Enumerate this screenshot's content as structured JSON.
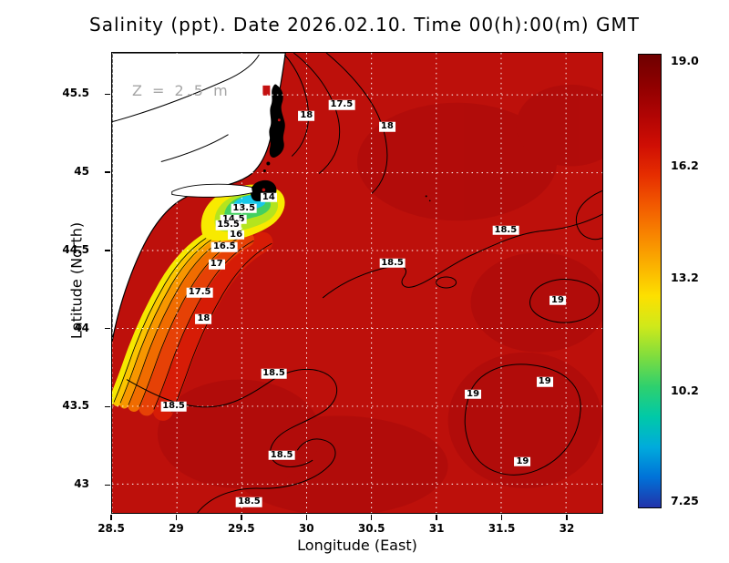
{
  "title": "Salinity (ppt). Date 2026.02.10. Time 00(h):00(m) GMT",
  "annotation": {
    "text": "Z = 2.5 m"
  },
  "axes": {
    "xlabel": "Longitude (East)",
    "ylabel": "Latitude (North)"
  },
  "colorbar": {
    "min": 7.25,
    "max": 19.0,
    "ticks": [
      {
        "value": 19.0,
        "label": "19.0"
      },
      {
        "value": 16.2,
        "label": "16.2"
      },
      {
        "value": 13.2,
        "label": "13.2"
      },
      {
        "value": 10.2,
        "label": "10.2"
      },
      {
        "value": 7.25,
        "label": "7.25"
      }
    ],
    "gradient": [
      "#6f0000",
      "#8e0000",
      "#b00404",
      "#cf0e04",
      "#e62e00",
      "#f25a00",
      "#f88600",
      "#fbb200",
      "#fde000",
      "#cfe91a",
      "#7fdd3e",
      "#2ed06e",
      "#00c9a8",
      "#00abdc",
      "#0072d8",
      "#2233aa"
    ]
  },
  "map_colors": {
    "sea": "#bd100b",
    "land": "#ffffff",
    "plume_bands": [
      "#d61c06",
      "#e64106",
      "#f06c00",
      "#f79600",
      "#fbc400",
      "#f6e800"
    ],
    "pocket_bands": [
      "#f8ea00",
      "#b4e41e",
      "#44d060",
      "#18c8e8"
    ],
    "river_fresh": "#000000",
    "marker_red": "#c41010"
  },
  "chart_data": {
    "type": "heatmap",
    "title": "Salinity (ppt). Date 2026.02.10. Time 00(h):00(m) GMT",
    "variable": "Salinity",
    "units": "ppt",
    "depth_label": "Z = 2.5 m",
    "date": "2026.02.10",
    "time_gmt": "00(h):00(m)",
    "xlabel": "Longitude (East)",
    "ylabel": "Latitude (North)",
    "x_range": [
      28.5,
      32.28
    ],
    "y_range": [
      42.815,
      45.77
    ],
    "value_range": [
      7.25,
      19.0
    ],
    "contour_interval": 0.5,
    "grid": true,
    "legend_position": "right-colorbar",
    "xticks": [
      {
        "value": 28.5,
        "label": "28.5"
      },
      {
        "value": 29,
        "label": "29"
      },
      {
        "value": 29.5,
        "label": "29.5"
      },
      {
        "value": 30,
        "label": "30"
      },
      {
        "value": 30.5,
        "label": "30.5"
      },
      {
        "value": 31,
        "label": "31"
      },
      {
        "value": 31.5,
        "label": "31.5"
      },
      {
        "value": 32,
        "label": "32"
      }
    ],
    "yticks": [
      {
        "value": 43,
        "label": "43"
      },
      {
        "value": 43.5,
        "label": "43.5"
      },
      {
        "value": 44,
        "label": "44"
      },
      {
        "value": 44.5,
        "label": "44.5"
      },
      {
        "value": 45,
        "label": "45"
      },
      {
        "value": 45.5,
        "label": "45.5"
      }
    ],
    "contour_labels": [
      {
        "value": "17.5",
        "lon": 30.27,
        "lat": 45.43
      },
      {
        "value": "18",
        "lon": 30.0,
        "lat": 45.36
      },
      {
        "value": "18",
        "lon": 30.62,
        "lat": 45.29
      },
      {
        "value": "14",
        "lon": 29.71,
        "lat": 44.84
      },
      {
        "value": "13.5",
        "lon": 29.52,
        "lat": 44.77
      },
      {
        "value": "14.5",
        "lon": 29.44,
        "lat": 44.7
      },
      {
        "value": "15.5",
        "lon": 29.4,
        "lat": 44.66
      },
      {
        "value": "16",
        "lon": 29.46,
        "lat": 44.6
      },
      {
        "value": "16.5",
        "lon": 29.37,
        "lat": 44.52
      },
      {
        "value": "17",
        "lon": 29.31,
        "lat": 44.41
      },
      {
        "value": "18.5",
        "lon": 31.53,
        "lat": 44.63
      },
      {
        "value": "18.5",
        "lon": 30.66,
        "lat": 44.42
      },
      {
        "value": "17.5",
        "lon": 29.18,
        "lat": 44.23
      },
      {
        "value": "19",
        "lon": 31.93,
        "lat": 44.18
      },
      {
        "value": "18",
        "lon": 29.21,
        "lat": 44.06
      },
      {
        "value": "18.5",
        "lon": 29.75,
        "lat": 43.71
      },
      {
        "value": "19",
        "lon": 31.83,
        "lat": 43.66
      },
      {
        "value": "19",
        "lon": 31.28,
        "lat": 43.58
      },
      {
        "value": "18.5",
        "lon": 28.98,
        "lat": 43.5
      },
      {
        "value": "18.5",
        "lon": 29.81,
        "lat": 43.19
      },
      {
        "value": "19",
        "lon": 31.66,
        "lat": 43.15
      },
      {
        "value": "18.5",
        "lon": 29.56,
        "lat": 42.89
      }
    ],
    "notes": "Filled contour map of sea-surface-layer salinity (western Black Sea). Open sea is 18.5-19 ppt (dark red). A low-salinity river plume follows the NW coast, decreasing shoreward through 18,17.5,17,16.5,16,15.5 ppt bands to 13.5-14 ppt (yellow-green-cyan) near the delta; water at the river mouths is below the 7.25 ppt color minimum (black). Land in the NW corner is white."
  }
}
